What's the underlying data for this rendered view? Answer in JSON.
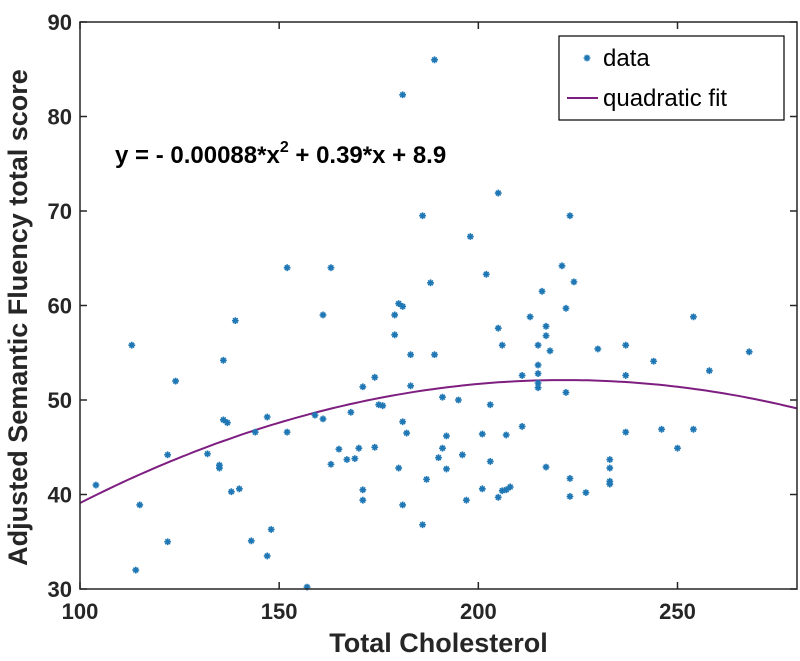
{
  "chart_data": {
    "type": "scatter",
    "xlabel": "Total Cholesterol",
    "ylabel": "Adjusted Semantic Fluency total score",
    "xlim": [
      100,
      280
    ],
    "ylim": [
      30,
      90
    ],
    "xticks": [
      "100",
      "150",
      "200",
      "250"
    ],
    "xtick_values": [
      100,
      150,
      200,
      250
    ],
    "yticks": [
      "30",
      "40",
      "50",
      "60",
      "70",
      "80",
      "90"
    ],
    "ytick_values": [
      30,
      40,
      50,
      60,
      70,
      80,
      90
    ],
    "legend": {
      "position": "top-right",
      "entries": [
        {
          "label": "data",
          "marker": "asterisk"
        },
        {
          "label": "quadratic fit",
          "marker": "line"
        }
      ]
    },
    "equation": {
      "prefix": "y = - 0.00088*x",
      "power": "2",
      "suffix": " + 0.39*x + 8.9"
    },
    "fit": {
      "a": -0.00088,
      "b": 0.39,
      "c": 8.9
    },
    "colors": {
      "data": "#1f77b4",
      "fit": "#7e1e80",
      "axis": "#262626"
    },
    "series": [
      {
        "name": "data",
        "points": [
          [
            104,
            41
          ],
          [
            113,
            55.8
          ],
          [
            114,
            32
          ],
          [
            115,
            38.9
          ],
          [
            122,
            35
          ],
          [
            122,
            44.2
          ],
          [
            124,
            52
          ],
          [
            132,
            44.3
          ],
          [
            135,
            42.8
          ],
          [
            135,
            43.1
          ],
          [
            136,
            54.2
          ],
          [
            136,
            47.9
          ],
          [
            137,
            47.6
          ],
          [
            138,
            40.3
          ],
          [
            139,
            58.4
          ],
          [
            140,
            40.6
          ],
          [
            143,
            35.1
          ],
          [
            144,
            46.6
          ],
          [
            147,
            33.5
          ],
          [
            147,
            48.2
          ],
          [
            148,
            36.3
          ],
          [
            152,
            46.6
          ],
          [
            152,
            64
          ],
          [
            157,
            30.2
          ],
          [
            159,
            48.4
          ],
          [
            161,
            59
          ],
          [
            161,
            48
          ],
          [
            163,
            43.2
          ],
          [
            163,
            64
          ],
          [
            165,
            44.8
          ],
          [
            167,
            43.7
          ],
          [
            168,
            48.7
          ],
          [
            169,
            43.8
          ],
          [
            170,
            44.9
          ],
          [
            171,
            40.5
          ],
          [
            171,
            39.4
          ],
          [
            171,
            51.4
          ],
          [
            174,
            45
          ],
          [
            174,
            52.4
          ],
          [
            175,
            49.5
          ],
          [
            176,
            49.4
          ],
          [
            179,
            59
          ],
          [
            179,
            56.9
          ],
          [
            180,
            60.2
          ],
          [
            180,
            42.8
          ],
          [
            181,
            59.9
          ],
          [
            181,
            82.3
          ],
          [
            181,
            47.7
          ],
          [
            181,
            38.9
          ],
          [
            182,
            46.5
          ],
          [
            183,
            54.8
          ],
          [
            183,
            51.5
          ],
          [
            186,
            69.5
          ],
          [
            186,
            36.8
          ],
          [
            187,
            41.6
          ],
          [
            188,
            62.4
          ],
          [
            189,
            54.8
          ],
          [
            189,
            86
          ],
          [
            190,
            43.9
          ],
          [
            191,
            44.9
          ],
          [
            191,
            50.3
          ],
          [
            192,
            46.2
          ],
          [
            192,
            42.7
          ],
          [
            195,
            50
          ],
          [
            196,
            44.2
          ],
          [
            197,
            39.4
          ],
          [
            198,
            67.3
          ],
          [
            201,
            46.4
          ],
          [
            201,
            40.6
          ],
          [
            202,
            63.3
          ],
          [
            203,
            43.5
          ],
          [
            203,
            49.5
          ],
          [
            205,
            57.6
          ],
          [
            205,
            39.7
          ],
          [
            205,
            71.9
          ],
          [
            206,
            55.8
          ],
          [
            206,
            40.4
          ],
          [
            207,
            46.3
          ],
          [
            207,
            40.5
          ],
          [
            208,
            40.8
          ],
          [
            211,
            47.2
          ],
          [
            211,
            52.6
          ],
          [
            213,
            58.8
          ],
          [
            215,
            53.7
          ],
          [
            215,
            52.8
          ],
          [
            215,
            51.8
          ],
          [
            215,
            51.3
          ],
          [
            215,
            55.8
          ],
          [
            216,
            61.5
          ],
          [
            217,
            56.8
          ],
          [
            217,
            57.8
          ],
          [
            217,
            42.9
          ],
          [
            218,
            55.2
          ],
          [
            221,
            64.2
          ],
          [
            222,
            59.7
          ],
          [
            222,
            50.8
          ],
          [
            223,
            69.5
          ],
          [
            223,
            41.7
          ],
          [
            223,
            39.8
          ],
          [
            224,
            62.5
          ],
          [
            227,
            40.2
          ],
          [
            230,
            55.4
          ],
          [
            233,
            41.4
          ],
          [
            233,
            41.1
          ],
          [
            233,
            42.8
          ],
          [
            233,
            43.7
          ],
          [
            237,
            52.6
          ],
          [
            237,
            55.8
          ],
          [
            237,
            46.6
          ],
          [
            244,
            54.1
          ],
          [
            246,
            46.9
          ],
          [
            250,
            44.9
          ],
          [
            254,
            46.9
          ],
          [
            254,
            58.8
          ],
          [
            258,
            53.1
          ],
          [
            268,
            55.1
          ]
        ]
      },
      {
        "name": "quadratic fit",
        "x_range": [
          100,
          280
        ]
      }
    ]
  }
}
